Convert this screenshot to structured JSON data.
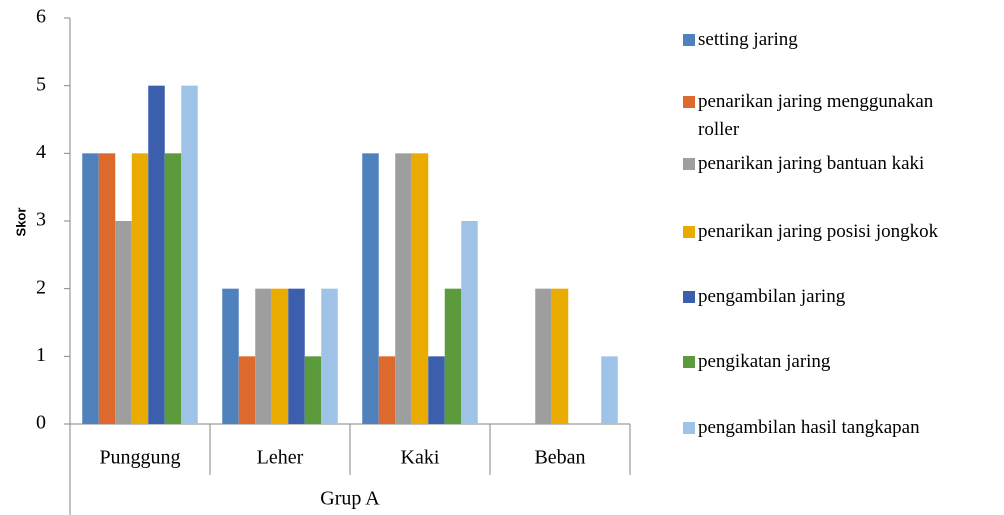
{
  "chart_data": {
    "type": "bar",
    "y_label": "Skor",
    "group_label": "Grup A",
    "categories": [
      "Punggung",
      "Leher",
      "Kaki",
      "Beban"
    ],
    "ylim": [
      0,
      6
    ],
    "yticks": [
      0,
      1,
      2,
      3,
      4,
      5,
      6
    ],
    "legend": "right",
    "series": [
      {
        "name": "setting jaring",
        "color": "#4f81bd",
        "values": [
          4,
          2,
          4,
          0
        ]
      },
      {
        "name": "penarikan jaring menggunakan roller",
        "color": "#dd6a2c",
        "values": [
          4,
          1,
          1,
          0
        ]
      },
      {
        "name": "penarikan jaring bantuan kaki",
        "color": "#9e9e9e",
        "values": [
          3,
          2,
          4,
          2
        ]
      },
      {
        "name": "penarikan jaring posisi jongkok",
        "color": "#eaab00",
        "values": [
          4,
          2,
          4,
          2
        ]
      },
      {
        "name": "pengambilan jaring",
        "color": "#3b5ead",
        "values": [
          5,
          2,
          1,
          0
        ]
      },
      {
        "name": "pengikatan jaring",
        "color": "#5c9b3c",
        "values": [
          4,
          1,
          2,
          0
        ]
      },
      {
        "name": "pengambilan hasil tangkapan",
        "color": "#9fc3e7",
        "values": [
          5,
          2,
          3,
          1
        ]
      }
    ]
  }
}
